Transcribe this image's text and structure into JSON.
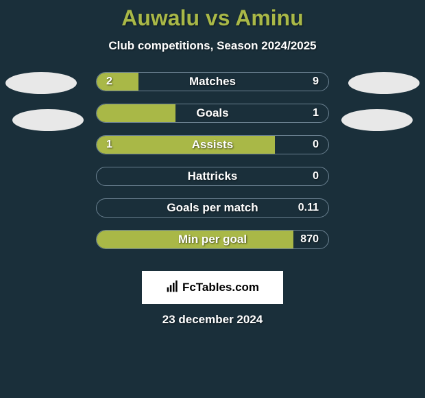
{
  "header": {
    "title": "Auwalu vs Aminu",
    "subtitle": "Club competitions, Season 2024/2025",
    "title_color": "#a9b847",
    "subtitle_color": "#ffffff"
  },
  "background_color": "#1a2f3a",
  "bar_color": "#a9b847",
  "bar_border_color": "#6a8090",
  "ellipse_color": "#e8e8e8",
  "stats": [
    {
      "label": "Matches",
      "left_value": "2",
      "right_value": "9",
      "fill_percent": 18
    },
    {
      "label": "Goals",
      "left_value": "",
      "right_value": "1",
      "fill_percent": 34
    },
    {
      "label": "Assists",
      "left_value": "1",
      "right_value": "0",
      "fill_percent": 77
    },
    {
      "label": "Hattricks",
      "left_value": "",
      "right_value": "0",
      "fill_percent": 0
    },
    {
      "label": "Goals per match",
      "left_value": "",
      "right_value": "0.11",
      "fill_percent": 0
    },
    {
      "label": "Min per goal",
      "left_value": "",
      "right_value": "870",
      "fill_percent": 85
    }
  ],
  "logo": {
    "text": "FcTables.com",
    "icon_name": "chart-icon"
  },
  "date": "23 december 2024"
}
